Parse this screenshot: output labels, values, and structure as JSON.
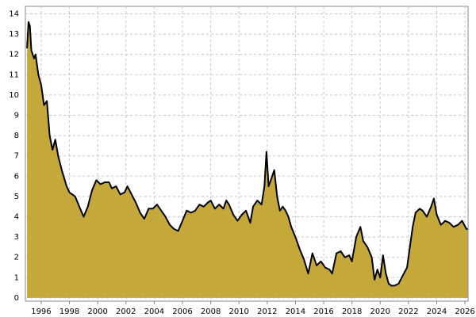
{
  "chart_data": {
    "type": "area",
    "x": [
      1995.0,
      1995.1,
      1995.2,
      1995.3,
      1995.5,
      1995.6,
      1995.8,
      1996.0,
      1996.2,
      1996.4,
      1996.6,
      1996.8,
      1997.0,
      1997.2,
      1997.5,
      1997.8,
      1998.0,
      1998.4,
      1998.7,
      1999.0,
      1999.3,
      1999.6,
      1999.9,
      2000.2,
      2000.5,
      2000.8,
      2001.0,
      2001.3,
      2001.6,
      2001.9,
      2002.1,
      2002.4,
      2002.7,
      2003.0,
      2003.3,
      2003.6,
      2003.9,
      2004.2,
      2004.5,
      2004.8,
      2005.1,
      2005.4,
      2005.7,
      2006.0,
      2006.3,
      2006.6,
      2006.9,
      2007.2,
      2007.5,
      2007.8,
      2008.0,
      2008.3,
      2008.6,
      2008.9,
      2009.1,
      2009.3,
      2009.6,
      2009.9,
      2010.2,
      2010.5,
      2010.8,
      2011.0,
      2011.3,
      2011.6,
      2011.8,
      2011.95,
      2012.1,
      2012.3,
      2012.5,
      2012.7,
      2012.9,
      2013.1,
      2013.3,
      2013.5,
      2013.7,
      2014.0,
      2014.3,
      2014.6,
      2014.9,
      2015.2,
      2015.5,
      2015.8,
      2016.1,
      2016.4,
      2016.6,
      2016.9,
      2017.2,
      2017.5,
      2017.8,
      2018.0,
      2018.3,
      2018.6,
      2018.8,
      2019.1,
      2019.4,
      2019.6,
      2019.8,
      2020.0,
      2020.2,
      2020.4,
      2020.6,
      2020.8,
      2021.0,
      2021.3,
      2021.6,
      2021.9,
      2022.1,
      2022.3,
      2022.5,
      2022.8,
      2023.0,
      2023.3,
      2023.6,
      2023.8,
      2024.0,
      2024.3,
      2024.6,
      2024.9,
      2025.2,
      2025.5,
      2025.8,
      2026.1,
      2026.2
    ],
    "values": [
      12.3,
      13.6,
      13.4,
      12.2,
      11.8,
      12.0,
      11.0,
      10.5,
      9.5,
      9.7,
      8.0,
      7.3,
      7.8,
      7.0,
      6.2,
      5.5,
      5.2,
      5.0,
      4.5,
      4.0,
      4.5,
      5.3,
      5.8,
      5.6,
      5.7,
      5.7,
      5.4,
      5.5,
      5.1,
      5.2,
      5.5,
      5.1,
      4.7,
      4.2,
      3.9,
      4.4,
      4.4,
      4.6,
      4.3,
      4.0,
      3.6,
      3.4,
      3.3,
      3.8,
      4.3,
      4.2,
      4.3,
      4.6,
      4.5,
      4.7,
      4.8,
      4.4,
      4.6,
      4.4,
      4.8,
      4.6,
      4.1,
      3.8,
      4.1,
      4.3,
      3.7,
      4.5,
      4.8,
      4.6,
      5.5,
      7.2,
      5.5,
      5.9,
      6.3,
      5.0,
      4.3,
      4.5,
      4.3,
      4.0,
      3.5,
      3.0,
      2.4,
      1.9,
      1.2,
      2.2,
      1.6,
      1.8,
      1.5,
      1.4,
      1.2,
      2.2,
      2.3,
      2.0,
      2.1,
      1.8,
      3.0,
      3.5,
      2.8,
      2.5,
      2.0,
      0.9,
      1.4,
      1.0,
      2.1,
      1.2,
      0.7,
      0.6,
      0.6,
      0.7,
      1.1,
      1.5,
      2.5,
      3.5,
      4.2,
      4.4,
      4.3,
      4.0,
      4.5,
      4.9,
      4.1,
      3.6,
      3.8,
      3.7,
      3.5,
      3.6,
      3.8,
      3.4,
      3.4
    ],
    "color": "#c4a83a",
    "line_color": "#000000",
    "xlim": [
      1994.88,
      2026.22
    ],
    "xticks": [
      1996,
      1998,
      2000,
      2002,
      2004,
      2006,
      2008,
      2010,
      2012,
      2014,
      2016,
      2018,
      2020,
      2022,
      2024,
      2026
    ],
    "ylim": [
      -0.16,
      14.37
    ],
    "yticks": [
      0,
      1,
      2,
      3,
      4,
      5,
      6,
      7,
      8,
      9,
      10,
      11,
      12,
      13,
      14
    ],
    "grid": true
  }
}
